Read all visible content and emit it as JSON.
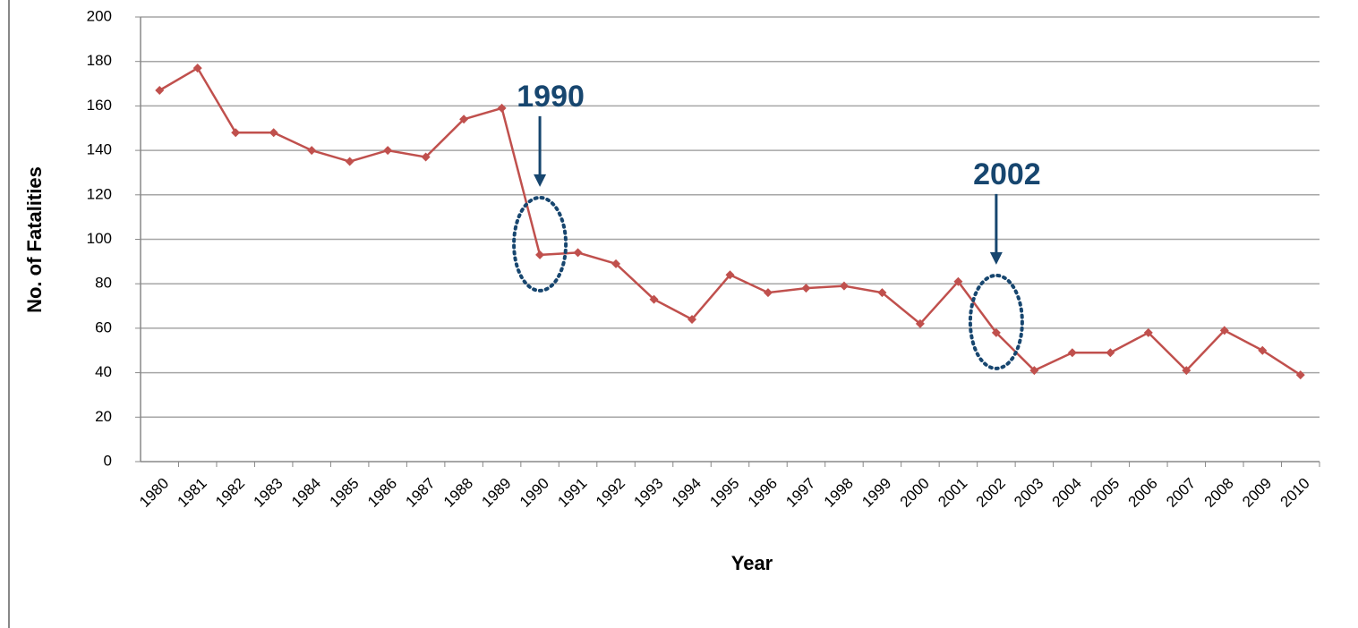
{
  "chart_data": {
    "type": "line",
    "x_label": "Year",
    "y_label": "No. of Fatalities",
    "categories": [
      "1980",
      "1981",
      "1982",
      "1983",
      "1984",
      "1985",
      "1986",
      "1987",
      "1988",
      "1989",
      "1990",
      "1991",
      "1992",
      "1993",
      "1994",
      "1995",
      "1996",
      "1997",
      "1998",
      "1999",
      "2000",
      "2001",
      "2002",
      "2003",
      "2004",
      "2005",
      "2006",
      "2007",
      "2008",
      "2009",
      "2010"
    ],
    "series": [
      {
        "color": "#c0504d",
        "values": [
          167,
          177,
          148,
          148,
          140,
          135,
          140,
          137,
          154,
          159,
          93,
          94,
          89,
          73,
          64,
          84,
          76,
          78,
          79,
          76,
          62,
          81,
          58,
          41,
          49,
          49,
          58,
          41,
          59,
          50,
          39
        ]
      }
    ],
    "ylim": [
      0,
      200
    ],
    "yticks": [
      0,
      20,
      40,
      60,
      80,
      100,
      120,
      140,
      160,
      180,
      200
    ],
    "grid": true,
    "annotations": [
      "1990",
      "2002"
    ]
  }
}
